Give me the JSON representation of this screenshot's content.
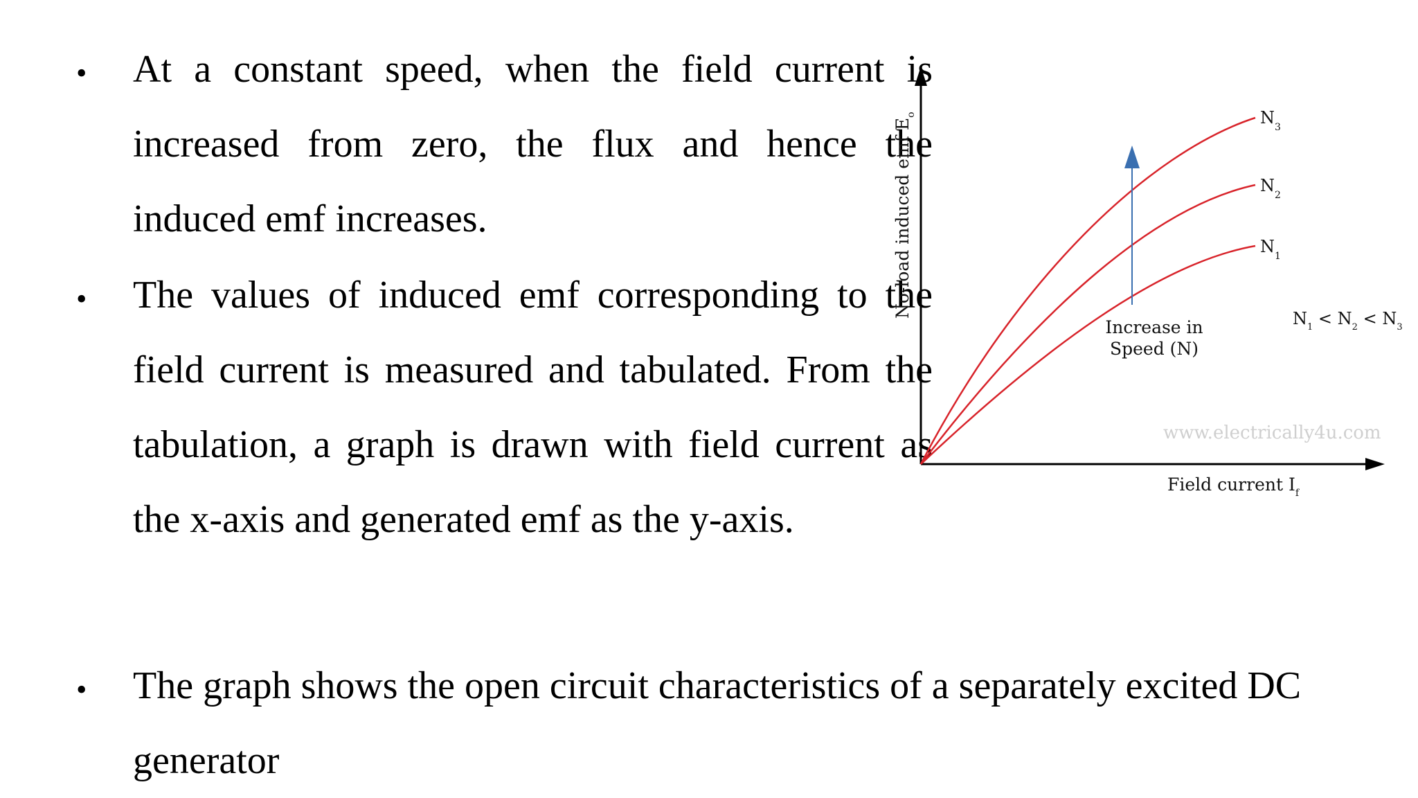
{
  "bullets": [
    {
      "symbol": "•",
      "text": "At a constant speed, when the field current is increased from zero, the flux and hence the induced emf increases."
    },
    {
      "symbol": "•",
      "text": "The values of induced emf corresponding to the field current is measured and tabulated. From the tabulation, a graph is drawn with field current as the x-axis and generated emf as the y-axis."
    },
    {
      "symbol": "•",
      "text": "The graph shows the open circuit characteristics of a separately excited DC generator"
    }
  ],
  "diagram": {
    "y_axis_label": "No-load induced emf E",
    "y_axis_sub": "o",
    "x_axis_label": "Field current I",
    "x_axis_sub": "f",
    "curves": [
      {
        "main": "N",
        "sub": "3"
      },
      {
        "main": "N",
        "sub": "2"
      },
      {
        "main": "N",
        "sub": "1"
      }
    ],
    "arrow_label_line1": "Increase in",
    "arrow_label_line2": "Speed (N)",
    "relation_n1": "N",
    "relation_s1": "1",
    "relation_lt1": " < ",
    "relation_n2": "N",
    "relation_s2": "2",
    "relation_lt2": " < ",
    "relation_n3": "N",
    "relation_s3": "3",
    "watermark": "www.electrically4u.com",
    "curve_color": "#d8232a",
    "arrow_color": "#3a6fb0"
  }
}
